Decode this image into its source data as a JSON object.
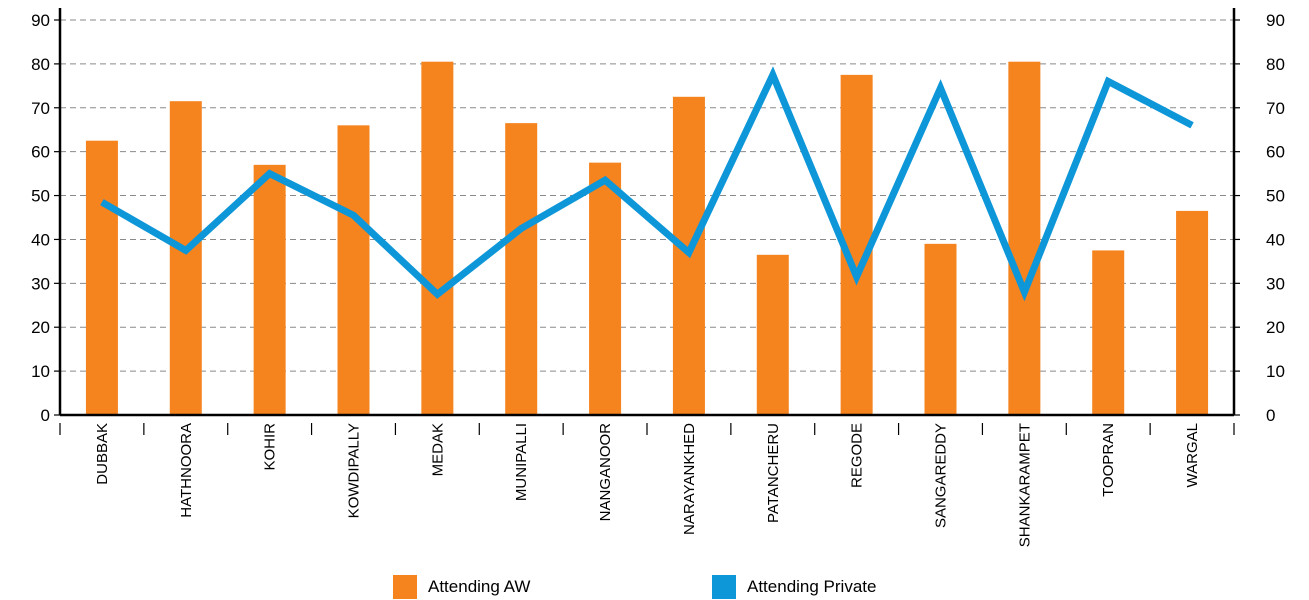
{
  "chart_data": {
    "type": "bar",
    "categories": [
      "DUBBAK",
      "HATHNOORA",
      "KOHIR",
      "KOWDIPALLY",
      "MEDAK",
      "MUNIPALLI",
      "NANGANOOR",
      "NARAYANKHED",
      "PATANCHERU",
      "REGODE",
      "SANGAREDDY",
      "SHANKARAMPET",
      "TOOPRAN",
      "WARGAL"
    ],
    "series": [
      {
        "name": "Attending AW",
        "type": "bar",
        "color": "#F5841F",
        "values": [
          62.5,
          71.5,
          57,
          66,
          80.5,
          66.5,
          57.5,
          72.5,
          36.5,
          77.5,
          39,
          80.5,
          37.5,
          46.5
        ]
      },
      {
        "name": "Attending Private",
        "type": "line",
        "color": "#0D96D8",
        "values": [
          48.5,
          37.5,
          55,
          45.5,
          27.5,
          42.5,
          53.5,
          37,
          77.5,
          31.5,
          74.5,
          28,
          76,
          66
        ]
      }
    ],
    "ylim": [
      0,
      90
    ],
    "yticks": [
      "0",
      "10",
      "20",
      "30",
      "40",
      "50",
      "60",
      "70",
      "80",
      "90"
    ],
    "y2ticks": [
      "0",
      "10",
      "20",
      "30",
      "40",
      "50",
      "60",
      "70",
      "80",
      "90"
    ],
    "grid": true,
    "legend_position": "bottom"
  }
}
